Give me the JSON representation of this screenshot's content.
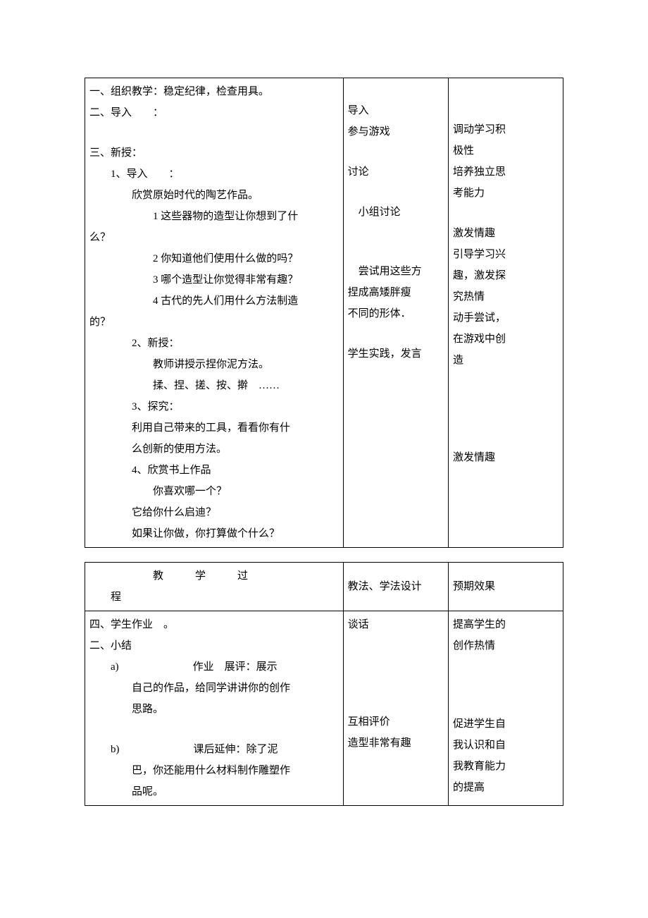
{
  "table1": {
    "col1": {
      "l1": "一、组织教学：稳定纪律，检查用具。",
      "l2": "二、导入　　：",
      "l3": "三、新授：",
      "l4": "1、导入　　：",
      "l5": "欣赏原始时代的陶艺作品。",
      "l6": "1 这些器物的造型让你想到了什",
      "l6b": "么？",
      "l7": "2 你知道他们使用什么做的吗？",
      "l8": "3 哪个造型让你觉得非常有趣？",
      "l9": "4 古代的先人们用什么方法制造",
      "l9b": "的？",
      "l10": "2、新授：",
      "l11": "教师讲授示捏你泥方法。",
      "l12": "揉、捏、搓、按、擀　……",
      "l13": "3、探究：",
      "l14": "利用自己带来的工具，看看你有什",
      "l14b": "么创新的使用方法。",
      "l15": "4、欣赏书上作品",
      "l16": "你喜欢哪一个？",
      "l17": "它给你什么启迪？",
      "l18": "如果让你做，你打算做个什么？"
    },
    "col2": {
      "l1": "导入",
      "l2": "参与游戏",
      "l3": "讨论",
      "l4": "小组讨论",
      "l5": "尝试用这些方",
      "l6": "捏成高矮胖瘦",
      "l7": "不同的形体．",
      "l8": "学生实践，发言"
    },
    "col3": {
      "l1": "调动学习积",
      "l2": "极性",
      "l3": "培养独立思",
      "l4": "考能力",
      "l5": "激发情趣",
      "l6": "引导学习兴",
      "l7": "趣，激发探",
      "l8": "究热情",
      "l9": "动手尝试，",
      "l10": "在游戏中创",
      "l11": "造",
      "l12": "激发情趣"
    }
  },
  "table2": {
    "header": {
      "h1a": "教",
      "h1b": "学",
      "h1c": "过",
      "h1d": "程",
      "h2": "教法、学法设计",
      "h3": "预期效果"
    },
    "col1": {
      "l1": "四、学生作业　。",
      "l2": "二、小结",
      "l3a": "a)",
      "l3": "作业　展评：展示",
      "l4": "自己的作品，给同学讲讲你的创作",
      "l5": "思路。",
      "l6a": "b)",
      "l6": "课后延伸：除了泥",
      "l7": "巴，你还能用什么材料制作雕塑作",
      "l8": "品呢。"
    },
    "col2": {
      "l1": "谈话",
      "l2": "互相评价",
      "l3": "造型非常有趣"
    },
    "col3": {
      "l1": "提高学生的",
      "l2": "创作热情",
      "l3": "促进学生自",
      "l4": "我认识和自",
      "l5": "我教育能力",
      "l6": "的提高"
    }
  }
}
